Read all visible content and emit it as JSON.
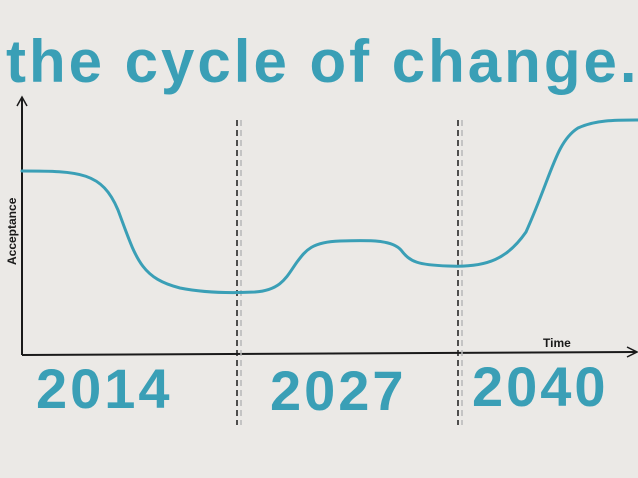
{
  "title": "the cycle of change.",
  "axes": {
    "y_label": "Acceptance",
    "x_label": "Time"
  },
  "years": [
    "2014",
    "2027",
    "2040"
  ],
  "colors": {
    "background": "#ebe9e6",
    "accent": "#3a9fb6",
    "axis": "#1a1a1a",
    "divider": "#1a1a1a",
    "divider_shadow": "#b8b8b8"
  }
}
